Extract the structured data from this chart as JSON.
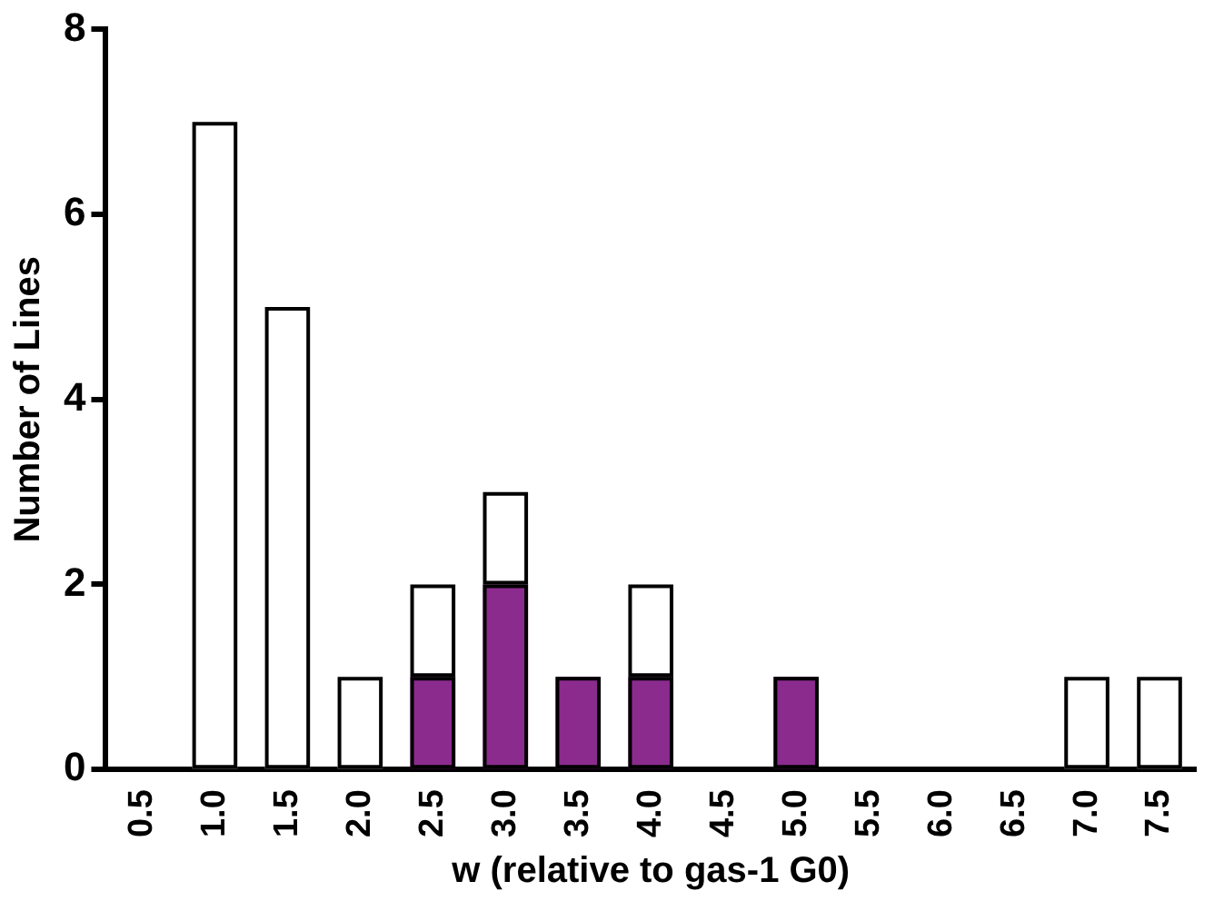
{
  "chart_data": {
    "type": "bar",
    "stacked": true,
    "xlabel": "w (relative to gas-1 G0)",
    "ylabel": "Number of Lines",
    "categories": [
      "0.5",
      "1.0",
      "1.5",
      "2.0",
      "2.5",
      "3.0",
      "3.5",
      "4.0",
      "4.5",
      "5.0",
      "5.5",
      "6.0",
      "6.5",
      "7.0",
      "7.5"
    ],
    "series": [
      {
        "color": "#8b2b8e",
        "values": [
          0,
          0,
          0,
          0,
          1,
          2,
          1,
          1,
          0,
          1,
          0,
          0,
          0,
          0,
          0
        ]
      },
      {
        "color": "#ffffff",
        "values": [
          0,
          7,
          5,
          1,
          1,
          1,
          0,
          1,
          0,
          0,
          0,
          0,
          0,
          1,
          1
        ]
      }
    ],
    "ylim": [
      0,
      8
    ],
    "yticks": [
      0,
      2,
      4,
      6,
      8
    ],
    "grid": false,
    "legend": false
  }
}
